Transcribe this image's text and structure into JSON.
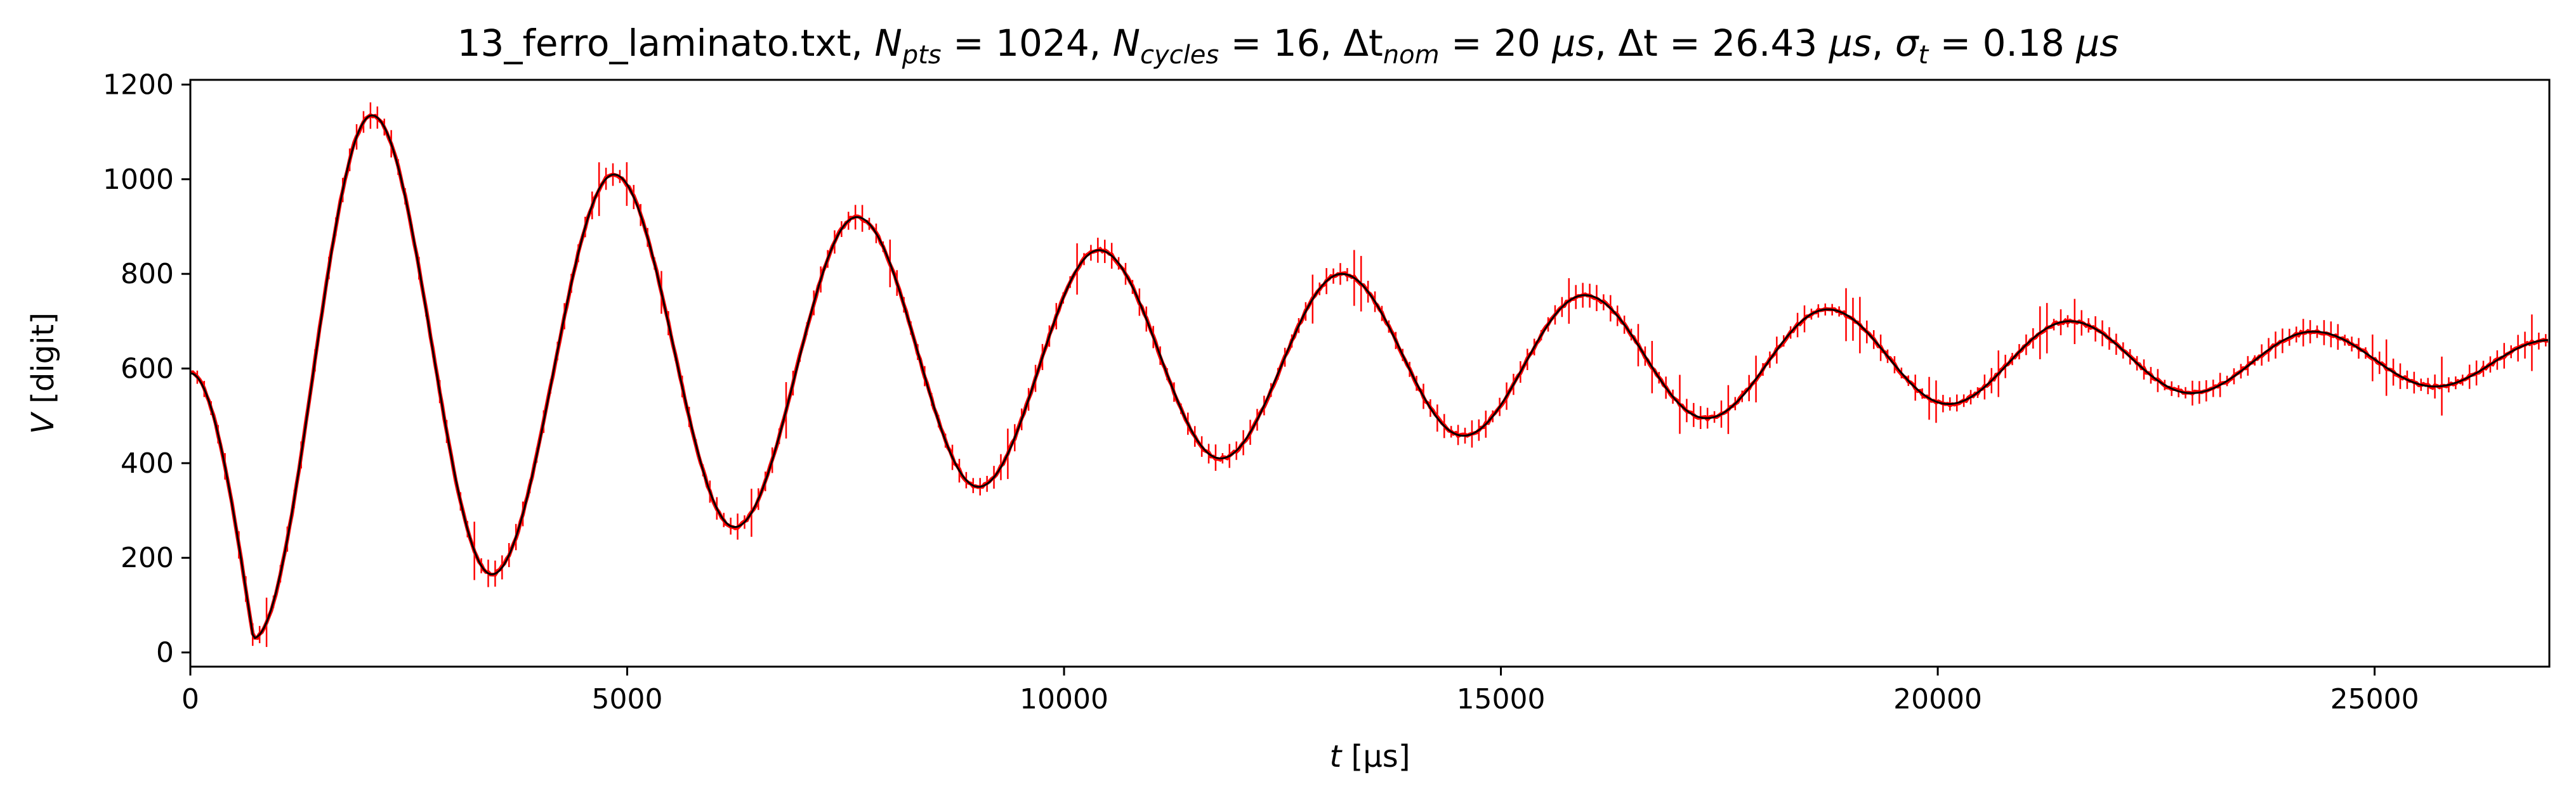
{
  "chart_data": {
    "type": "line",
    "title": "13_ferro_laminato.txt, N_pts = 1024, N_cycles = 16, Δt_nom = 20 μs, Δt = 26.43 μs, σ_t = 0.18 μs",
    "title_parts": {
      "file": "13_ferro_laminato.txt",
      "npts_sym": "N",
      "npts_sub": "pts",
      "npts_val": " = 1024, ",
      "ncyc_sym": "N",
      "ncyc_sub": "cycles",
      "ncyc_val": " = 16, ",
      "dtnom_sym": "Δt",
      "dtnom_sub": "nom",
      "dtnom_val": " = 20 ",
      "unit_mu": "μs",
      "dt_sym": "Δt",
      "dt_val": " = 26.43 ",
      "sig_sym": "σ",
      "sig_sub": "t",
      "sig_val": " = 0.18 "
    },
    "xlabel_sym": "t",
    "xlabel_unit": " [μs]",
    "ylabel_sym": "V",
    "ylabel_unit": " [digit]",
    "xlim": [
      0,
      27000
    ],
    "ylim": [
      -30,
      1210
    ],
    "xticks": [
      0,
      5000,
      10000,
      15000,
      20000,
      25000
    ],
    "yticks": [
      0,
      200,
      400,
      600,
      800,
      1000,
      1200
    ],
    "series": [
      {
        "role": "measured points with error bars",
        "color": "#ff0000",
        "x_start": 0,
        "x_step": 26.43,
        "n_points": 1024,
        "model": {
          "offset": 600,
          "amplitude": 575,
          "decay_us": 10500,
          "period_us": 2800,
          "phase_start_value": 590
        }
      },
      {
        "role": "fit curve",
        "color": "#000000"
      }
    ],
    "extrema": [
      {
        "t": 720,
        "v": 30
      },
      {
        "t": 2080,
        "v": 1135
      },
      {
        "t": 3450,
        "v": 165
      },
      {
        "t": 4850,
        "v": 1010
      },
      {
        "t": 6230,
        "v": 265
      },
      {
        "t": 7630,
        "v": 920
      },
      {
        "t": 9020,
        "v": 350
      },
      {
        "t": 10400,
        "v": 850
      },
      {
        "t": 11790,
        "v": 410
      },
      {
        "t": 13180,
        "v": 800
      },
      {
        "t": 14570,
        "v": 458
      },
      {
        "t": 15960,
        "v": 755
      },
      {
        "t": 17350,
        "v": 495
      },
      {
        "t": 18740,
        "v": 725
      },
      {
        "t": 20120,
        "v": 525
      },
      {
        "t": 21510,
        "v": 700
      },
      {
        "t": 22900,
        "v": 548
      },
      {
        "t": 24300,
        "v": 678
      },
      {
        "t": 25690,
        "v": 562
      },
      {
        "t": 27000,
        "v": 660
      }
    ],
    "grid": false,
    "legend": "none"
  }
}
